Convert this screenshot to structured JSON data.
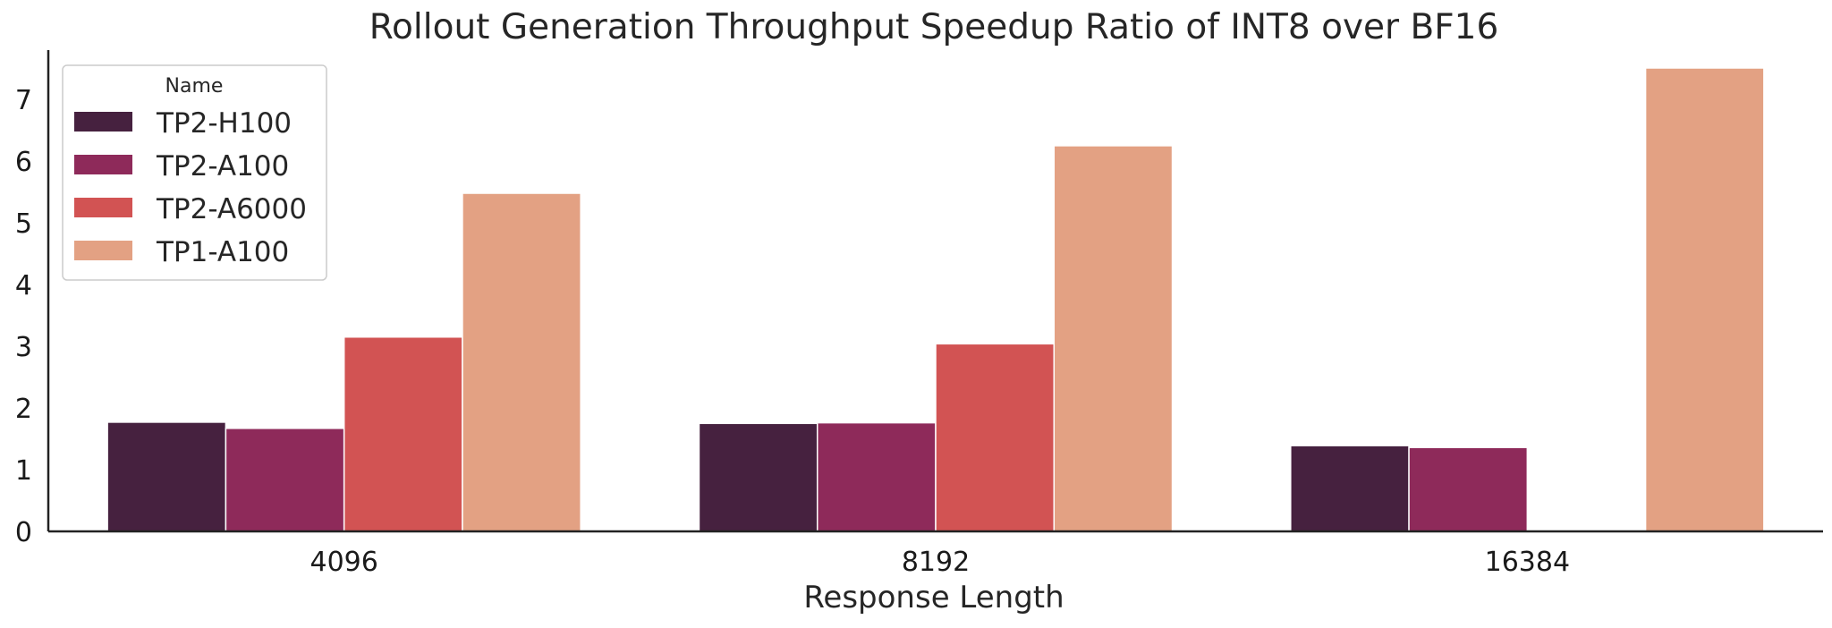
{
  "chart_data": {
    "type": "bar",
    "title": "Rollout Generation Throughput Speedup Ratio of INT8 over BF16",
    "xlabel": "Response Length",
    "ylabel": "",
    "categories": [
      "4096",
      "8192",
      "16384"
    ],
    "ylim": [
      0,
      7.8
    ],
    "yticks": [
      0,
      1,
      2,
      3,
      4,
      5,
      6,
      7
    ],
    "grid": false,
    "legend": {
      "title": "Name",
      "placement": "top-left"
    },
    "series": [
      {
        "name": "TP2-H100",
        "color": "#46213f",
        "values": [
          1.77,
          1.75,
          1.39
        ]
      },
      {
        "name": "TP2-A100",
        "color": "#8e2a5a",
        "values": [
          1.67,
          1.76,
          1.36
        ]
      },
      {
        "name": "TP2-A6000",
        "color": "#d25353",
        "values": [
          3.15,
          3.04,
          null
        ]
      },
      {
        "name": "TP1-A100",
        "color": "#e3a183",
        "values": [
          5.48,
          6.25,
          7.51
        ]
      }
    ]
  }
}
